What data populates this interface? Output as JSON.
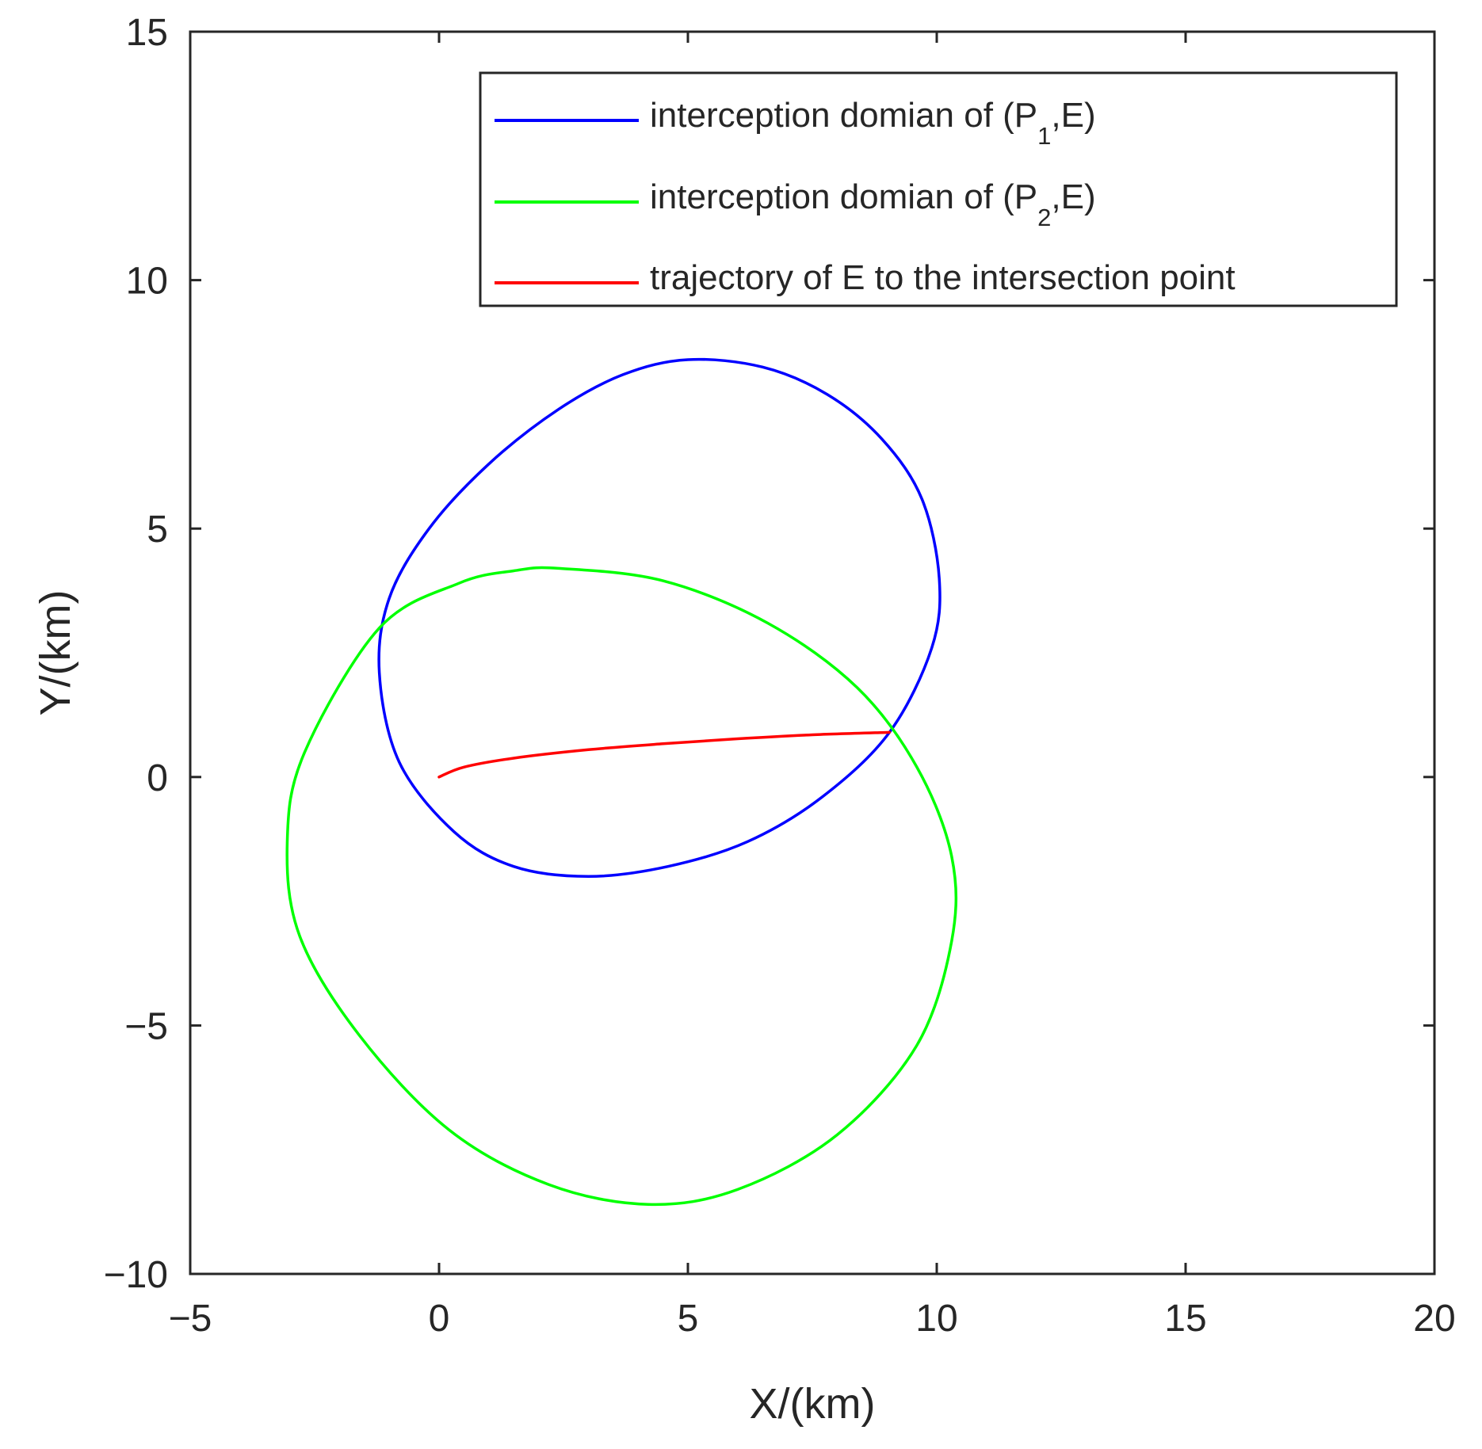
{
  "chart_data": {
    "type": "line",
    "xlabel": "X/(km)",
    "ylabel": "Y/(km)",
    "xlim": [
      -5,
      20
    ],
    "ylim": [
      -10,
      15
    ],
    "xticks": [
      -5,
      0,
      5,
      10,
      15,
      20
    ],
    "yticks": [
      -10,
      -5,
      0,
      5,
      10,
      15
    ],
    "xtick_labels": [
      "−5",
      "0",
      "5",
      "10",
      "15",
      "20"
    ],
    "ytick_labels": [
      "−10",
      "−5",
      "0",
      "5",
      "10",
      "15"
    ],
    "grid": false,
    "box": true,
    "legend_placement": "top-right",
    "legend": [
      {
        "series": 0,
        "text": "interception domian of (P",
        "sub": "1",
        "suffix": ",E)"
      },
      {
        "series": 1,
        "text": "interception domian of (P",
        "sub": "2",
        "suffix": ",E)"
      },
      {
        "series": 2,
        "text": "trajectory of E to the intersection point",
        "sub": "",
        "suffix": ""
      }
    ],
    "series": [
      {
        "color": "#0000ff",
        "closed": true,
        "x": [
          5.0,
          6.5,
          7.8,
          8.9,
          9.7,
          10.05,
          9.9,
          9.05,
          7.7,
          6.2,
          4.6,
          3.0,
          1.5,
          0.3,
          -0.8,
          -1.2,
          -1.0,
          -0.2,
          1.0,
          2.4,
          3.7
        ],
        "y": [
          8.4,
          8.25,
          7.7,
          6.8,
          5.6,
          4.0,
          2.6,
          0.9,
          -0.4,
          -1.3,
          -1.8,
          -2.0,
          -1.8,
          -1.1,
          0.3,
          2.1,
          3.6,
          5.0,
          6.3,
          7.4,
          8.1
        ]
      },
      {
        "color": "#00ff00",
        "closed": true,
        "x": [
          2.4,
          4.5,
          6.6,
          8.4,
          9.6,
          10.3,
          10.3,
          9.6,
          8.0,
          6.0,
          4.2,
          2.2,
          0.2,
          -1.6,
          -2.8,
          -3.05,
          -2.7,
          -1.2,
          0.4,
          1.5
        ],
        "y": [
          4.2,
          3.95,
          3.1,
          1.8,
          0.2,
          -1.6,
          -3.3,
          -5.4,
          -7.2,
          -8.3,
          -8.6,
          -8.2,
          -7.1,
          -5.2,
          -3.2,
          -1.3,
          0.5,
          3.0,
          3.9,
          4.15
        ]
      },
      {
        "color": "#ff0000",
        "closed": false,
        "x": [
          0.0,
          0.5,
          1.5,
          3.0,
          4.5,
          6.0,
          7.5,
          9.05
        ],
        "y": [
          0.0,
          0.2,
          0.38,
          0.55,
          0.67,
          0.77,
          0.85,
          0.9
        ]
      }
    ]
  }
}
